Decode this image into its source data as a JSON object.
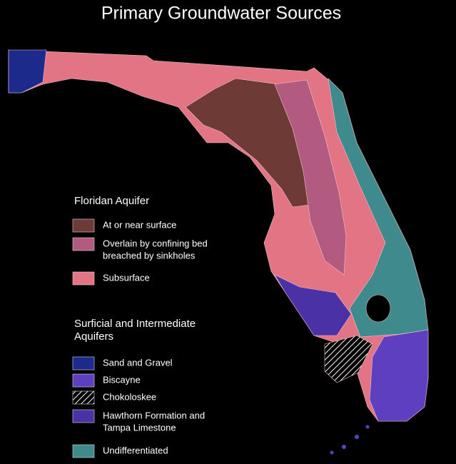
{
  "title": "Primary Groundwater Sources",
  "legend": {
    "groups": [
      {
        "title_lines": [
          "Floridan Aquifer"
        ],
        "items": [
          {
            "lines": [
              "At or near surface"
            ],
            "color": "#6e3a36"
          },
          {
            "lines": [
              "Overlain by confining bed",
              "breached by sinkholes"
            ],
            "color": "#b25a80"
          },
          {
            "lines": [
              "Subsurface"
            ],
            "color": "#e27484"
          }
        ]
      },
      {
        "title_lines": [
          "Surficial and Intermediate",
          "Aquifers"
        ],
        "items": [
          {
            "lines": [
              "Sand and Gravel"
            ],
            "color": "#1c2a8c"
          },
          {
            "lines": [
              "Biscayne"
            ],
            "color": "#5d3fc0"
          },
          {
            "lines": [
              "Chokoloskee"
            ],
            "color": "hatch"
          },
          {
            "lines": [
              "Hawthorn Formation and",
              "Tampa Limestone"
            ],
            "color": "#4a31a6"
          },
          {
            "lines": [
              "Undifferentiated"
            ],
            "color": "#3f8a8c"
          }
        ]
      }
    ]
  }
}
